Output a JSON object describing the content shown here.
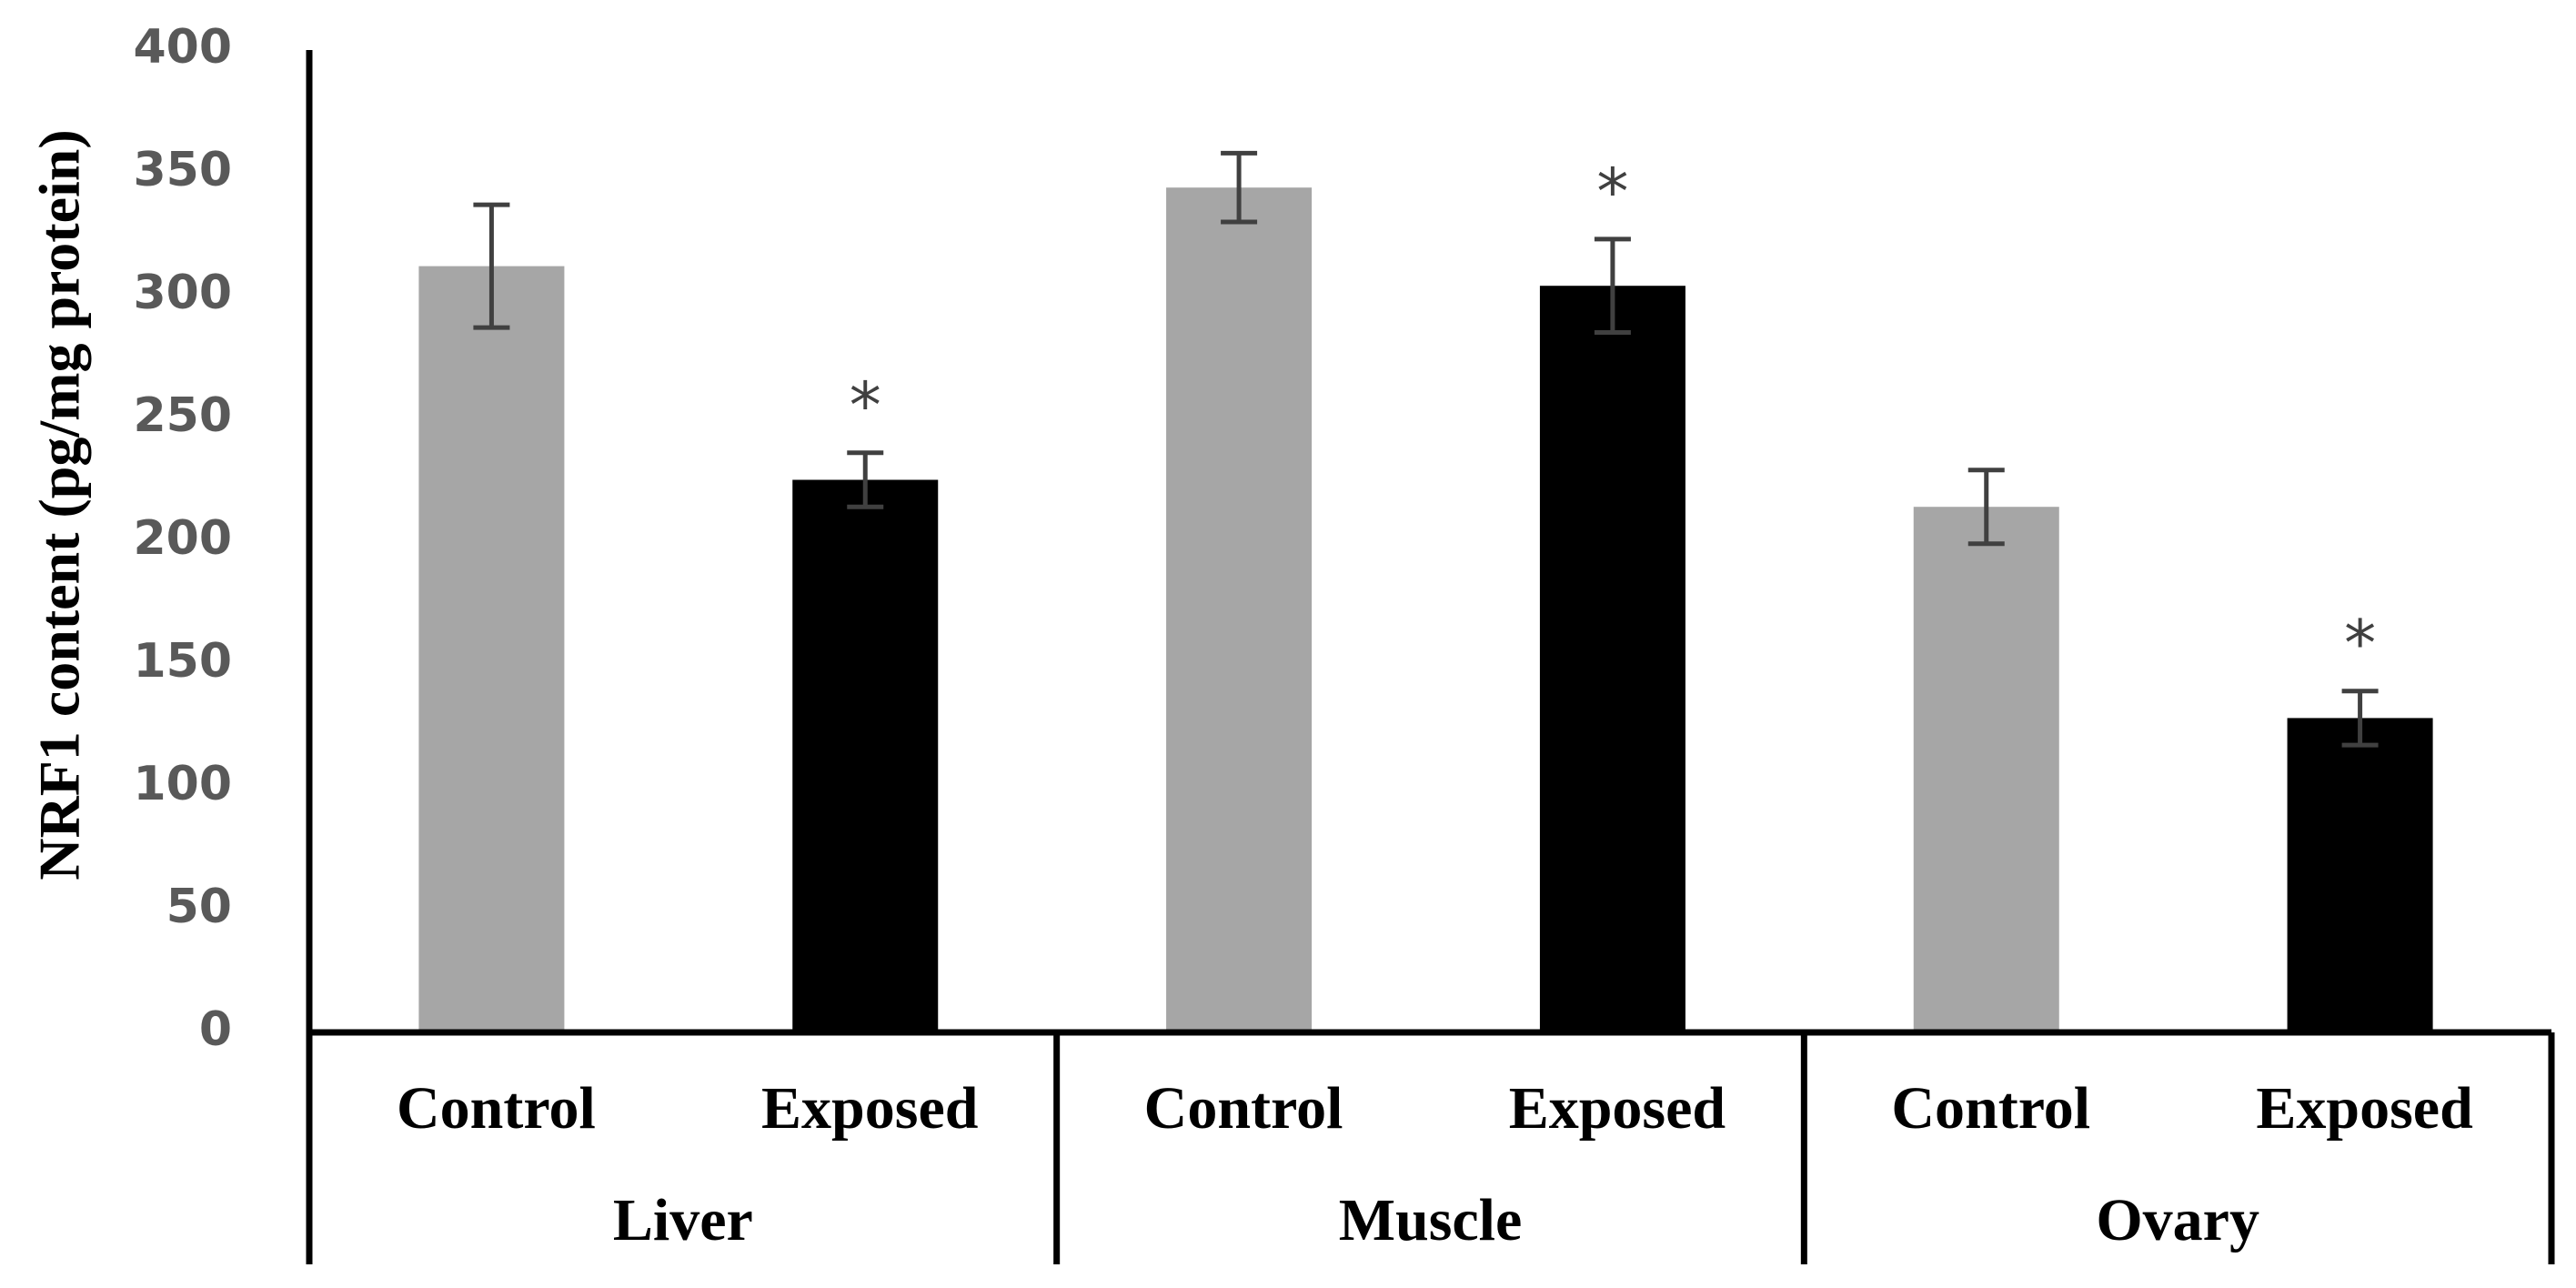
{
  "chart_data": {
    "type": "bar",
    "title": "",
    "xlabel": "",
    "ylabel": "NRF1 content (pg/mg protein)",
    "ylim": [
      0,
      400
    ],
    "yticks": [
      0,
      50,
      100,
      150,
      200,
      250,
      300,
      350,
      400
    ],
    "grid": false,
    "legend": "none",
    "groups": [
      "Liver",
      "Muscle",
      "Ovary"
    ],
    "categories": [
      "Control",
      "Exposed",
      "Control",
      "Exposed",
      "Control",
      "Exposed"
    ],
    "bars": [
      {
        "group": "Liver",
        "category": "Control",
        "value": 312,
        "error": 25,
        "significant": false,
        "color": "#a6a6a6"
      },
      {
        "group": "Liver",
        "category": "Exposed",
        "value": 225,
        "error": 11,
        "significant": true,
        "color": "#000000"
      },
      {
        "group": "Muscle",
        "category": "Control",
        "value": 344,
        "error": 14,
        "significant": false,
        "color": "#a6a6a6"
      },
      {
        "group": "Muscle",
        "category": "Exposed",
        "value": 304,
        "error": 19,
        "significant": true,
        "color": "#000000"
      },
      {
        "group": "Ovary",
        "category": "Control",
        "value": 214,
        "error": 15,
        "significant": false,
        "color": "#a6a6a6"
      },
      {
        "group": "Ovary",
        "category": "Exposed",
        "value": 128,
        "error": 11,
        "significant": true,
        "color": "#000000"
      }
    ],
    "significance_marker": "*"
  },
  "colors": {
    "control": "#a6a6a6",
    "exposed": "#000000",
    "error_bar": "#404040",
    "axis": "#000000",
    "tick_text": "#595959"
  }
}
